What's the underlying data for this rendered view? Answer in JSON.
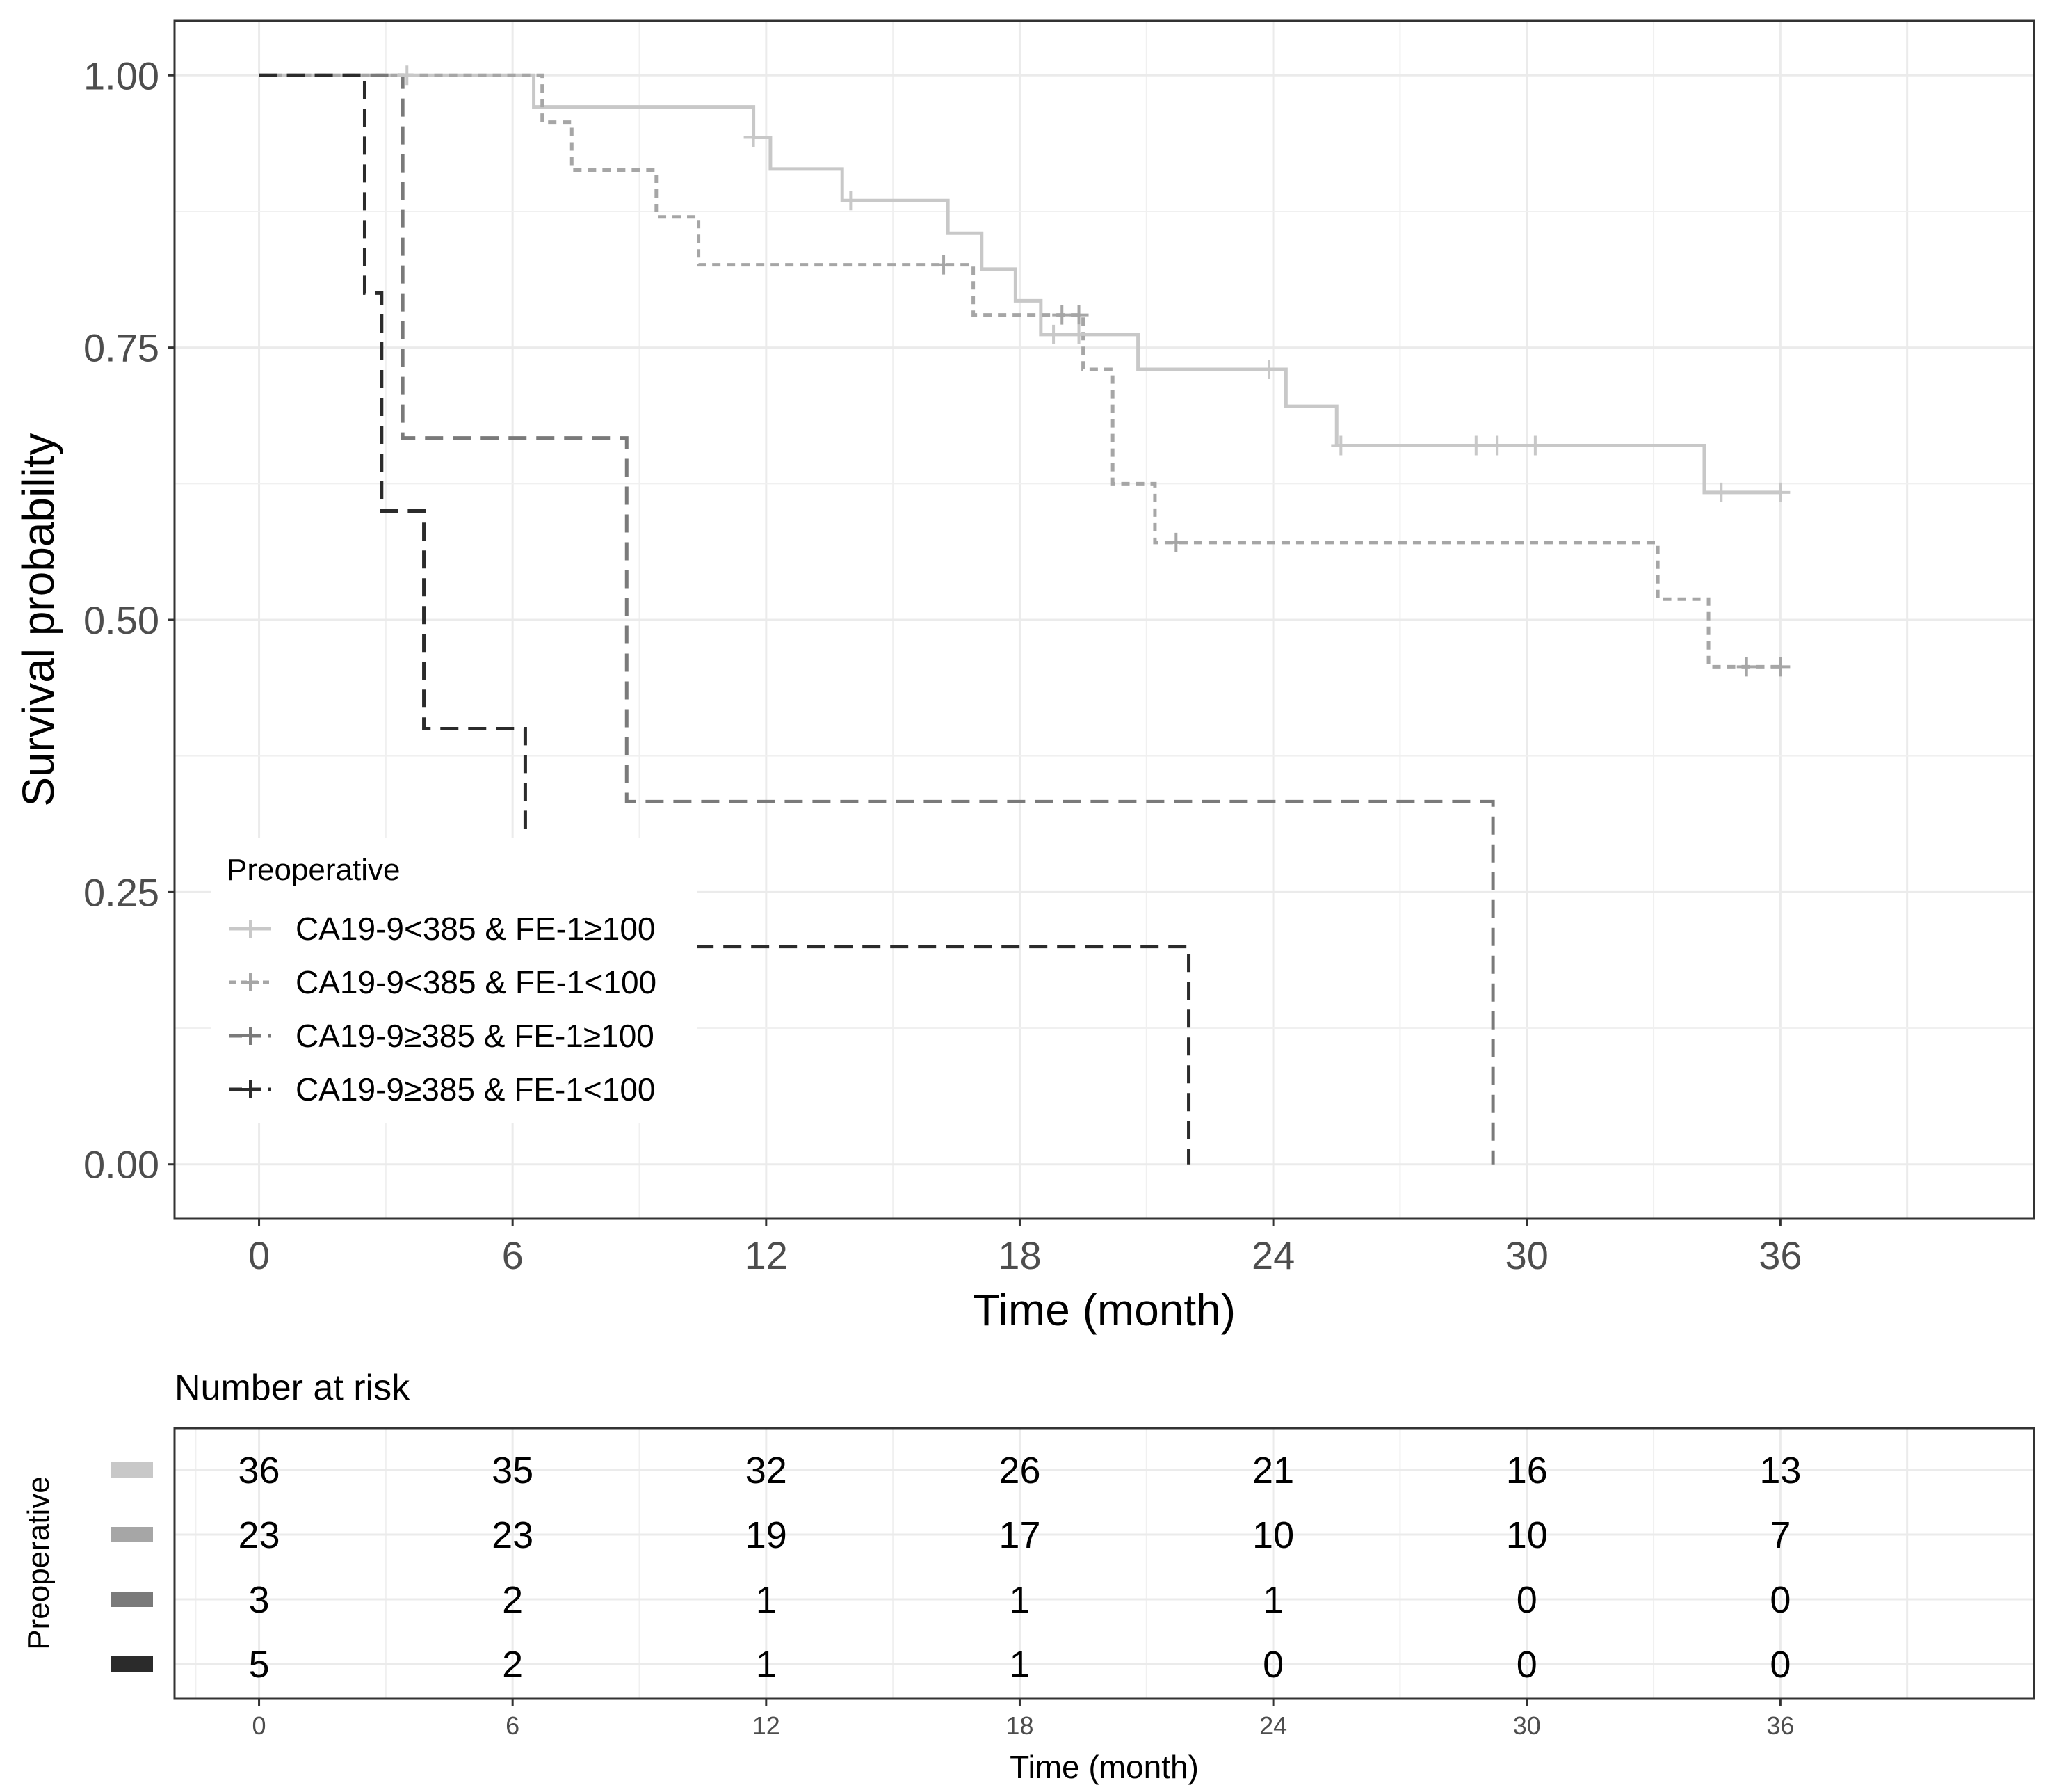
{
  "chart_data": {
    "type": "line",
    "subtype": "kaplan-meier",
    "xlabel": "Time (month)",
    "ylabel": "Survival probability",
    "x_ticks": [
      0,
      6,
      12,
      18,
      24,
      30,
      36
    ],
    "y_ticks": [
      "0.00",
      "0.25",
      "0.50",
      "0.75",
      "1.00"
    ],
    "xlim": [
      -2,
      42
    ],
    "ylim": [
      -0.05,
      1.05
    ],
    "grid": true,
    "legend": {
      "title": "Preoperative",
      "position": "bottom-left"
    },
    "series": [
      {
        "name": "CA19-9<385 & FE-1≥100",
        "color": "#c8c8c8",
        "dash": "solid",
        "steps": [
          [
            0,
            1.0
          ],
          [
            6.5,
            0.971
          ],
          [
            11.7,
            0.943
          ],
          [
            12.1,
            0.914
          ],
          [
            13.8,
            0.885
          ],
          [
            16.3,
            0.855
          ],
          [
            17.1,
            0.822
          ],
          [
            17.9,
            0.793
          ],
          [
            18.5,
            0.762
          ],
          [
            20.8,
            0.73
          ],
          [
            24.3,
            0.696
          ],
          [
            25.5,
            0.66
          ],
          [
            34.2,
            0.617
          ]
        ],
        "end": 36,
        "censors": [
          [
            3.5,
            1.0
          ],
          [
            11.7,
            0.943
          ],
          [
            14.0,
            0.885
          ],
          [
            18.8,
            0.762
          ],
          [
            19.4,
            0.762
          ],
          [
            23.9,
            0.73
          ],
          [
            25.6,
            0.66
          ],
          [
            28.8,
            0.66
          ],
          [
            29.3,
            0.66
          ],
          [
            30.2,
            0.66
          ],
          [
            34.6,
            0.617
          ],
          [
            36.0,
            0.617
          ]
        ]
      },
      {
        "name": "CA19-9<385 & FE-1<100",
        "color": "#a6a6a6",
        "dash": "dotted",
        "steps": [
          [
            0,
            1.0
          ],
          [
            6.7,
            0.957
          ],
          [
            7.4,
            0.913
          ],
          [
            9.4,
            0.87
          ],
          [
            10.4,
            0.826
          ],
          [
            16.9,
            0.78
          ],
          [
            19.5,
            0.73
          ],
          [
            20.2,
            0.625
          ],
          [
            21.2,
            0.571
          ],
          [
            33.1,
            0.519
          ],
          [
            34.3,
            0.457
          ]
        ],
        "end": 36,
        "censors": [
          [
            16.2,
            0.826
          ],
          [
            19.0,
            0.78
          ],
          [
            19.4,
            0.78
          ],
          [
            21.7,
            0.571
          ],
          [
            35.2,
            0.457
          ],
          [
            36.0,
            0.457
          ]
        ]
      },
      {
        "name": "CA19-9≥385 & FE-1≥100",
        "color": "#7a7a7a",
        "dash": "dashed",
        "steps": [
          [
            0,
            1.0
          ],
          [
            3.4,
            0.667
          ],
          [
            8.7,
            0.333
          ],
          [
            29.2,
            0.0
          ]
        ],
        "end": 29.2,
        "censors": []
      },
      {
        "name": "CA19-9≥385 & FE-1<100",
        "color": "#2b2b2b",
        "dash": "dashed",
        "steps": [
          [
            0,
            1.0
          ],
          [
            2.5,
            0.8
          ],
          [
            2.9,
            0.6
          ],
          [
            3.9,
            0.4
          ],
          [
            6.3,
            0.2
          ],
          [
            22.0,
            0.0
          ]
        ],
        "end": 22.0,
        "censors": []
      }
    ],
    "risk_table": {
      "title": "Number at risk",
      "ylabel": "Preoperative",
      "xlabel": "Time (month)",
      "times": [
        0,
        6,
        12,
        18,
        24,
        30,
        36
      ],
      "rows": [
        [
          36,
          35,
          32,
          26,
          21,
          16,
          13
        ],
        [
          23,
          23,
          19,
          17,
          10,
          10,
          7
        ],
        [
          3,
          2,
          1,
          1,
          1,
          0,
          0
        ],
        [
          5,
          2,
          1,
          1,
          0,
          0,
          0
        ]
      ]
    }
  }
}
